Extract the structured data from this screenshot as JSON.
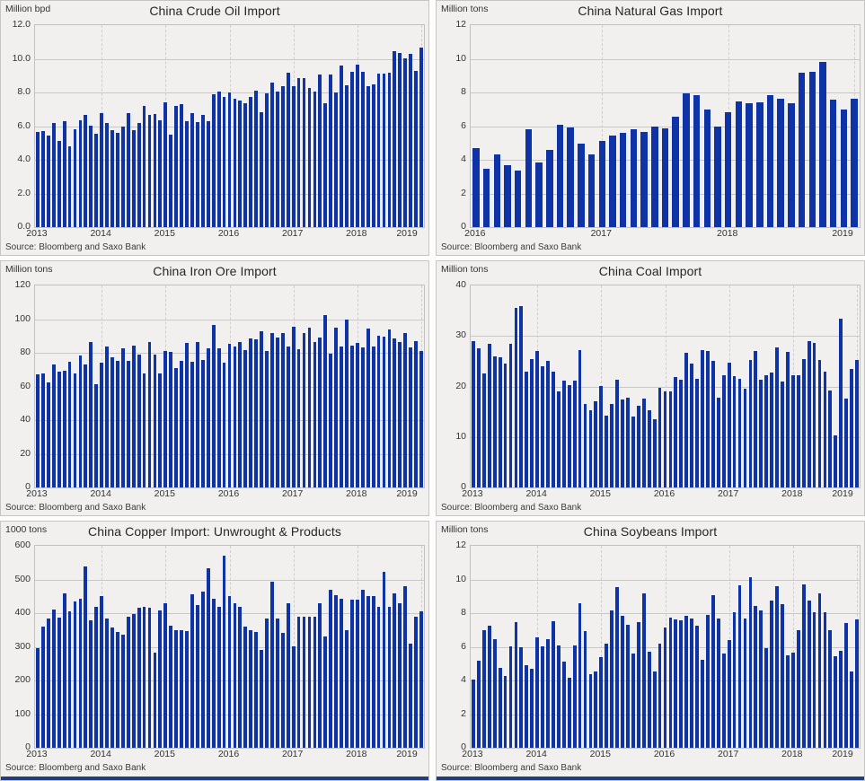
{
  "page": {
    "source_label": "Source: Bloomberg and Saxo Bank"
  },
  "colors": {
    "bar": "#0d33a6",
    "panel_bg": "#f1f0ee",
    "panel_border": "#c6c5c3",
    "plot_border": "#c2c1bf",
    "grid_line": "#c9c8c6",
    "year_grid_line": "#cfcecd",
    "text": "#333333",
    "title_text": "#262626",
    "accent_strip": "#1f3f77"
  },
  "chart_data": [
    {
      "type": "bar",
      "title": "China Crude Oil Import",
      "ylabel": "Million bpd",
      "x_range": "monthly, Jan 2013 - Jan 2019",
      "ylim": [
        0,
        12
      ],
      "grid": true,
      "y_ticks": [
        0,
        2,
        4,
        6,
        8,
        10,
        12
      ],
      "y_tick_labels": [
        "0.0",
        "2.0",
        "4.0",
        "6.0",
        "8.0",
        "10.0",
        "12.0"
      ],
      "x_ticks": [
        {
          "label": "2013",
          "index": 0
        },
        {
          "label": "2014",
          "index": 12
        },
        {
          "label": "2015",
          "index": 24
        },
        {
          "label": "2016",
          "index": 36
        },
        {
          "label": "2017",
          "index": 48
        },
        {
          "label": "2018",
          "index": 60
        },
        {
          "label": "2019",
          "index": 72
        }
      ],
      "values": [
        5.65,
        5.7,
        5.45,
        6.2,
        5.1,
        6.3,
        4.8,
        5.8,
        6.35,
        6.65,
        6.05,
        5.55,
        6.8,
        6.2,
        5.75,
        5.6,
        6.0,
        6.75,
        5.75,
        6.2,
        7.2,
        6.65,
        6.7,
        6.35,
        7.4,
        5.5,
        7.2,
        7.3,
        6.3,
        6.8,
        6.25,
        6.65,
        6.3,
        7.9,
        8.05,
        7.75,
        8.0,
        7.65,
        7.5,
        7.35,
        7.75,
        8.1,
        6.85,
        7.95,
        8.6,
        8.05,
        8.35,
        9.2,
        8.4,
        8.85,
        8.85,
        8.25,
        8.05,
        9.05,
        7.35,
        9.05,
        8.0,
        9.6,
        8.45,
        9.25,
        9.65,
        9.25,
        8.4,
        8.5,
        9.1,
        9.1,
        9.2,
        10.45,
        10.35,
        10.05,
        10.3,
        9.3,
        10.65
      ]
    },
    {
      "type": "bar",
      "title": "China Natural Gas Import",
      "ylabel": "Million tons",
      "x_range": "monthly, Jan 2016 - Jan 2019",
      "ylim": [
        0,
        12
      ],
      "grid": true,
      "y_ticks": [
        0,
        2,
        4,
        6,
        8,
        10,
        12
      ],
      "y_tick_labels": [
        "0",
        "2",
        "4",
        "6",
        "8",
        "10",
        "12"
      ],
      "x_ticks": [
        {
          "label": "2016",
          "index": 0
        },
        {
          "label": "2017",
          "index": 12
        },
        {
          "label": "2018",
          "index": 24
        },
        {
          "label": "2019",
          "index": 36
        }
      ],
      "values": [
        4.7,
        3.45,
        4.3,
        3.7,
        3.35,
        5.8,
        3.85,
        4.6,
        6.1,
        5.9,
        4.95,
        4.3,
        5.1,
        5.45,
        5.6,
        5.8,
        5.65,
        6.0,
        5.85,
        6.55,
        7.95,
        7.85,
        7.0,
        6.0,
        6.85,
        7.45,
        7.35,
        7.4,
        7.85,
        7.65,
        7.35,
        9.2,
        9.25,
        9.8,
        7.6,
        7.0,
        7.65
      ]
    },
    {
      "type": "bar",
      "title": "China Iron Ore Import",
      "ylabel": "Million tons",
      "x_range": "monthly, Jan 2013 - Jan 2019",
      "ylim": [
        0,
        120
      ],
      "grid": true,
      "y_ticks": [
        0,
        20,
        40,
        60,
        80,
        100,
        120
      ],
      "y_tick_labels": [
        "0",
        "20",
        "40",
        "60",
        "80",
        "100",
        "120"
      ],
      "x_ticks": [
        {
          "label": "2013",
          "index": 0
        },
        {
          "label": "2014",
          "index": 12
        },
        {
          "label": "2015",
          "index": 24
        },
        {
          "label": "2016",
          "index": 36
        },
        {
          "label": "2017",
          "index": 48
        },
        {
          "label": "2018",
          "index": 60
        },
        {
          "label": "2019",
          "index": 72
        }
      ],
      "values": [
        67,
        68,
        62.5,
        73,
        69,
        69.5,
        74.5,
        68,
        78.5,
        73,
        86.5,
        61.5,
        74,
        83.5,
        77.5,
        75,
        82.5,
        75,
        84.5,
        79,
        67.5,
        86.5,
        79,
        68,
        81,
        80.5,
        71,
        75,
        86,
        74.5,
        86.5,
        75.5,
        82.5,
        96.5,
        82.5,
        74,
        85.5,
        84,
        86.5,
        81.5,
        88.5,
        88,
        93,
        81,
        92,
        89,
        92,
        83.5,
        95.5,
        82,
        92,
        95,
        86.5,
        89,
        102.5,
        79.5,
        95,
        84,
        100,
        84.5,
        86,
        83,
        94.5,
        83.5,
        90,
        89.5,
        94,
        88.5,
        86.5,
        91.5,
        83,
        87,
        81
      ]
    },
    {
      "type": "bar",
      "title": "China Coal Import",
      "ylabel": "Million tons",
      "x_range": "monthly, Jan 2013 - Jan 2019",
      "ylim": [
        0,
        40
      ],
      "grid": true,
      "y_ticks": [
        0,
        10,
        20,
        30,
        40
      ],
      "y_tick_labels": [
        "0",
        "10",
        "20",
        "30",
        "40"
      ],
      "x_ticks": [
        {
          "label": "2013",
          "index": 0
        },
        {
          "label": "2014",
          "index": 12
        },
        {
          "label": "2015",
          "index": 24
        },
        {
          "label": "2016",
          "index": 36
        },
        {
          "label": "2017",
          "index": 48
        },
        {
          "label": "2018",
          "index": 60
        },
        {
          "label": "2019",
          "index": 72
        }
      ],
      "values": [
        29,
        27.5,
        22.5,
        28.5,
        26,
        25.8,
        24.5,
        28.5,
        35.5,
        36,
        23,
        25.5,
        27,
        24,
        25,
        23,
        19,
        21.2,
        20.2,
        21.2,
        27.2,
        16.6,
        15.3,
        17.1,
        20.1,
        14.3,
        16.6,
        21.3,
        17.5,
        17.8,
        14,
        16.2,
        17.6,
        15.3,
        13.6,
        19.7,
        19,
        19,
        21.8,
        21.3,
        26.6,
        24.5,
        21.6,
        27.2,
        27,
        25,
        17.8,
        22.2,
        24.8,
        22,
        21.6,
        19.6,
        25.3,
        27,
        21.3,
        22.2,
        22.7,
        27.8,
        21,
        26.8,
        22.3,
        22.3,
        25.5,
        29,
        28.6,
        25.2,
        23,
        19.2,
        10.3,
        33.5,
        17.6,
        23.5,
        25.3
      ]
    },
    {
      "type": "bar",
      "title": "China Copper Import: Unwrought & Products",
      "ylabel": "1000 tons",
      "x_range": "monthly, Jan 2013 - Jan 2019",
      "ylim": [
        0,
        600
      ],
      "grid": true,
      "y_ticks": [
        0,
        100,
        200,
        300,
        400,
        500,
        600
      ],
      "y_tick_labels": [
        "0",
        "100",
        "200",
        "300",
        "400",
        "500",
        "600"
      ],
      "x_ticks": [
        {
          "label": "2013",
          "index": 0
        },
        {
          "label": "2014",
          "index": 12
        },
        {
          "label": "2015",
          "index": 24
        },
        {
          "label": "2016",
          "index": 36
        },
        {
          "label": "2017",
          "index": 48
        },
        {
          "label": "2018",
          "index": 60
        },
        {
          "label": "2019",
          "index": 72
        }
      ],
      "values": [
        295,
        360,
        383,
        410,
        388,
        460,
        405,
        435,
        442,
        538,
        380,
        420,
        450,
        385,
        357,
        345,
        337,
        390,
        398,
        415,
        420,
        415,
        283,
        408,
        430,
        363,
        350,
        350,
        348,
        457,
        425,
        463,
        533,
        443,
        420,
        572,
        452,
        430,
        420,
        360,
        350,
        343,
        290,
        383,
        493,
        383,
        342,
        430,
        302,
        390,
        390,
        390,
        390,
        430,
        330,
        470,
        453,
        442,
        350,
        440,
        440,
        470,
        452,
        452,
        420,
        522,
        420,
        460,
        430,
        481,
        310,
        390,
        405
      ]
    },
    {
      "type": "bar",
      "title": "China Soybeans Import",
      "ylabel": "Million tons",
      "x_range": "monthly, Jan 2013 - Jan 2019",
      "ylim": [
        0,
        12
      ],
      "grid": true,
      "y_ticks": [
        0,
        2,
        4,
        6,
        8,
        10,
        12
      ],
      "y_tick_labels": [
        "0",
        "2",
        "4",
        "6",
        "8",
        "10",
        "12"
      ],
      "x_ticks": [
        {
          "label": "2013",
          "index": 0
        },
        {
          "label": "2014",
          "index": 12
        },
        {
          "label": "2015",
          "index": 24
        },
        {
          "label": "2016",
          "index": 36
        },
        {
          "label": "2017",
          "index": 48
        },
        {
          "label": "2018",
          "index": 60
        },
        {
          "label": "2019",
          "index": 72
        }
      ],
      "values": [
        4.05,
        5.2,
        7.0,
        7.25,
        6.45,
        4.75,
        4.25,
        6.05,
        7.45,
        5.95,
        4.9,
        4.7,
        6.55,
        6.05,
        6.45,
        7.5,
        6.1,
        5.1,
        4.15,
        6.1,
        8.6,
        6.95,
        4.35,
        4.55,
        5.4,
        6.2,
        8.15,
        9.55,
        7.85,
        7.3,
        5.6,
        7.45,
        9.2,
        5.7,
        4.55,
        6.2,
        7.15,
        7.75,
        7.65,
        7.6,
        7.85,
        7.7,
        7.25,
        5.25,
        7.9,
        9.05,
        7.7,
        5.6,
        6.4,
        8.05,
        9.65,
        7.7,
        10.15,
        8.45,
        8.15,
        5.9,
        8.75,
        9.6,
        8.55,
        5.5,
        5.65,
        7.0,
        9.7,
        8.75,
        8.05,
        9.2,
        8.05,
        7.0,
        5.45,
        5.75,
        7.4,
        4.55,
        7.65
      ]
    }
  ]
}
